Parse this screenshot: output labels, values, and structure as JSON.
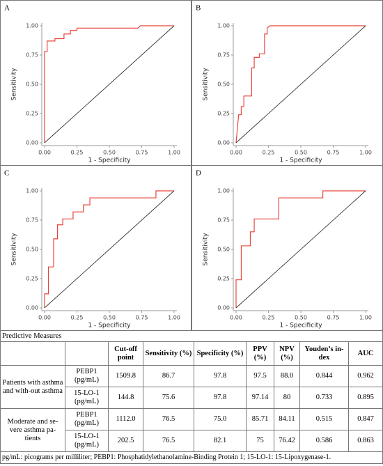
{
  "chart_data": [
    {
      "type": "line",
      "panel": "A",
      "xlabel": "1 - Specificity",
      "ylabel": "Sensitivity",
      "xlim": [
        0,
        1
      ],
      "ylim": [
        0,
        1
      ],
      "xticks": [
        {
          "value": 0,
          "label": "0.00"
        },
        0.25,
        {
          "value": 0.5,
          "label": "0.50"
        },
        0.75,
        {
          "value": 1,
          "label": "1.00"
        }
      ],
      "yticks": [
        {
          "value": 0,
          "label": "0.00"
        },
        0.25,
        {
          "value": 0.5,
          "label": "0.50"
        },
        0.75,
        {
          "value": 1,
          "label": "1.00"
        }
      ],
      "series": [
        {
          "color": "#e8453c",
          "x": [
            0,
            0,
            0.02,
            0.02,
            0.08,
            0.08,
            0.15,
            0.15,
            0.2,
            0.2,
            0.25,
            0.25,
            0.72,
            0.74,
            1
          ],
          "values": [
            0,
            0.78,
            0.78,
            0.87,
            0.87,
            0.89,
            0.89,
            0.93,
            0.93,
            0.96,
            0.96,
            0.98,
            0.98,
            1,
            1
          ]
        },
        {
          "color": "#333333",
          "x": [
            0,
            1
          ],
          "values": [
            0,
            1
          ]
        }
      ]
    },
    {
      "type": "line",
      "panel": "B",
      "xlabel": "1 - Specificity",
      "ylabel": "Sensitivity",
      "xlim": [
        0,
        1
      ],
      "ylim": [
        0,
        1
      ],
      "xticks": [
        {
          "value": 0,
          "label": "0.00"
        },
        0.25,
        {
          "value": 0.5,
          "label": "0.50"
        },
        0.75,
        {
          "value": 1,
          "label": "1.00"
        }
      ],
      "yticks": [
        {
          "value": 0,
          "label": "0.00"
        },
        0.25,
        {
          "value": 0.5,
          "label": "0.50"
        },
        0.75,
        {
          "value": 1,
          "label": "1.00"
        }
      ],
      "series": [
        {
          "color": "#e8453c",
          "x": [
            0,
            0.02,
            0.04,
            0.04,
            0.06,
            0.06,
            0.12,
            0.12,
            0.14,
            0.14,
            0.18,
            0.18,
            0.22,
            0.22,
            0.24,
            0.24,
            0.26,
            1
          ],
          "values": [
            0,
            0.24,
            0.24,
            0.31,
            0.31,
            0.4,
            0.4,
            0.64,
            0.64,
            0.73,
            0.73,
            0.76,
            0.76,
            0.93,
            0.93,
            0.98,
            1,
            1
          ]
        },
        {
          "color": "#333333",
          "x": [
            0,
            1
          ],
          "values": [
            0,
            1
          ]
        }
      ]
    },
    {
      "type": "line",
      "panel": "C",
      "xlabel": "1 - Specificity",
      "ylabel": "Sensitivity",
      "xlim": [
        0,
        1
      ],
      "ylim": [
        0,
        1
      ],
      "xticks": [
        {
          "value": 0,
          "label": "0.00"
        },
        0.25,
        {
          "value": 0.5,
          "label": "0.50"
        },
        0.75,
        {
          "value": 1,
          "label": "1.00"
        }
      ],
      "yticks": [
        {
          "value": 0,
          "label": "0.00"
        },
        0.25,
        {
          "value": 0.5,
          "label": "0.50"
        },
        0.75,
        {
          "value": 1,
          "label": "1.00"
        }
      ],
      "series": [
        {
          "color": "#e8453c",
          "x": [
            0,
            0,
            0.03,
            0.03,
            0.07,
            0.07,
            0.1,
            0.1,
            0.14,
            0.14,
            0.22,
            0.22,
            0.3,
            0.3,
            0.35,
            0.35,
            0.86,
            0.86,
            1
          ],
          "values": [
            0,
            0.12,
            0.12,
            0.35,
            0.35,
            0.59,
            0.59,
            0.71,
            0.71,
            0.76,
            0.76,
            0.82,
            0.82,
            0.88,
            0.88,
            0.94,
            0.94,
            1,
            1
          ]
        },
        {
          "color": "#333333",
          "x": [
            0,
            1
          ],
          "values": [
            0,
            1
          ]
        }
      ]
    },
    {
      "type": "line",
      "panel": "D",
      "xlabel": "1 - Specificity",
      "ylabel": "Sensitivity",
      "xlim": [
        0,
        1
      ],
      "ylim": [
        0,
        1
      ],
      "xticks": [
        {
          "value": 0,
          "label": "0.00"
        },
        0.25,
        {
          "value": 0.5,
          "label": "0.50"
        },
        0.75,
        {
          "value": 1,
          "label": "1.00"
        }
      ],
      "yticks": [
        {
          "value": 0,
          "label": "0.00"
        },
        0.25,
        {
          "value": 0.5,
          "label": "0.50"
        },
        0.75,
        {
          "value": 1,
          "label": "1.00"
        }
      ],
      "series": [
        {
          "color": "#e8453c",
          "x": [
            0,
            0,
            0.04,
            0.04,
            0.11,
            0.11,
            0.14,
            0.14,
            0.33,
            0.33,
            0.67,
            0.67,
            1
          ],
          "values": [
            0,
            0.24,
            0.24,
            0.53,
            0.53,
            0.65,
            0.65,
            0.76,
            0.76,
            0.94,
            0.94,
            1,
            1
          ]
        },
        {
          "color": "#333333",
          "x": [
            0,
            1
          ],
          "values": [
            0,
            1
          ]
        }
      ]
    }
  ],
  "table": {
    "caption": "Predictive Measures",
    "header": [
      "Cut-off point",
      "Sensitivity (%)",
      "Specificity (%)",
      "PPV (%)",
      "NPV (%)",
      "Youden’s in-dex",
      "AUC"
    ],
    "groups": [
      {
        "label": "Patients with asthma and with-out asthma",
        "rows": [
          [
            "PEBP1 (pg/mL)",
            "1509.8",
            "86.7",
            "97.8",
            "97.5",
            "88.0",
            "0.844",
            "0.962"
          ],
          [
            "15-LO-1 (pg/mL)",
            "144.8",
            "75.6",
            "97.8",
            "97.14",
            "80",
            "0.733",
            "0.895"
          ]
        ]
      },
      {
        "label": "Moderate and se-vere asthma pa-tients",
        "rows": [
          [
            "PEBP1 (pg/mL)",
            "1112.0",
            "76.5",
            "75.0",
            "85.71",
            "84.11",
            "0.515",
            "0.847"
          ],
          [
            "15-LO-1 (pg/mL)",
            "202.5",
            "76.5",
            "82.1",
            "75",
            "76.42",
            "0.586",
            "0.863"
          ]
        ]
      }
    ],
    "footnote": "pg/mL: picograms per milliliter; PEBP1: Phosphatidylethanolamine-Binding Protein 1; 15-LO-1: 15-Lipoxygenase-1."
  }
}
